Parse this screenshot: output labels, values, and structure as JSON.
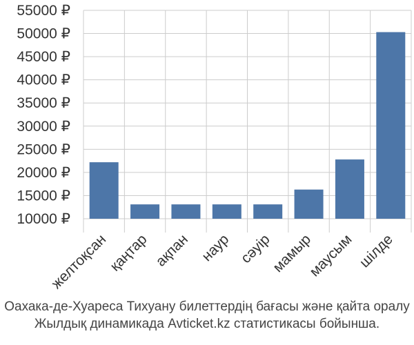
{
  "chart_data": {
    "type": "bar",
    "categories": [
      "желтоқсан",
      "қаңтар",
      "ақпан",
      "наур",
      "сәуір",
      "мамыр",
      "маусым",
      "шілде"
    ],
    "values": [
      22200,
      13100,
      13100,
      13100,
      13100,
      16300,
      22800,
      50300
    ],
    "ylim": [
      10000,
      55000
    ],
    "yticks": [
      10000,
      15000,
      20000,
      25000,
      30000,
      35000,
      40000,
      45000,
      50000,
      55000
    ],
    "ytick_labels": [
      "10000 ₽",
      "15000 ₽",
      "20000 ₽",
      "25000 ₽",
      "30000 ₽",
      "35000 ₽",
      "40000 ₽",
      "45000 ₽",
      "50000 ₽",
      "55000 ₽"
    ],
    "grid": true,
    "bar_color": "#4d76a8",
    "caption": [
      "Оахака-де-Хуареса Тихуану билеттердің бағасы және қайта оралу",
      "Жылдық динамикада Avticket.kz статистикасы бойынша."
    ]
  }
}
